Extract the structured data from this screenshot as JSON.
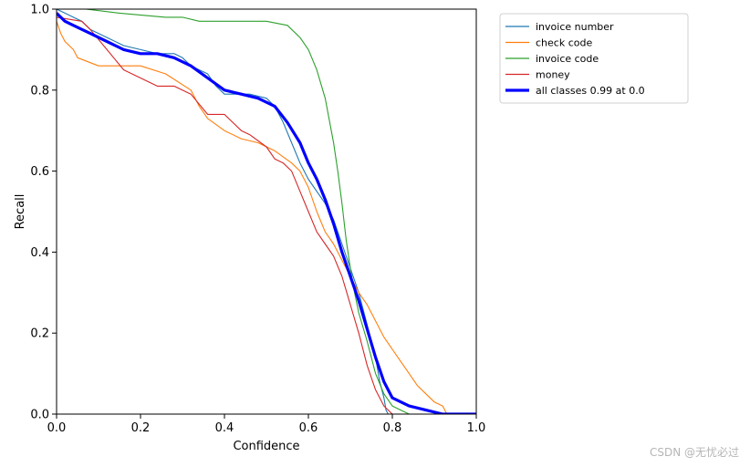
{
  "chart_data": {
    "type": "line",
    "title": "",
    "xlabel": "Confidence",
    "ylabel": "Recall",
    "xlim": [
      0,
      1
    ],
    "ylim": [
      0,
      1
    ],
    "xticks": [
      "0.0",
      "0.2",
      "0.4",
      "0.6",
      "0.8",
      "1.0"
    ],
    "yticks": [
      "0.0",
      "0.2",
      "0.4",
      "0.6",
      "0.8",
      "1.0"
    ],
    "grid": false,
    "legend_position": "outside-top-right",
    "series": [
      {
        "name": "invoice number",
        "color": "#1f77b4",
        "x": [
          0.0,
          0.02,
          0.04,
          0.06,
          0.08,
          0.12,
          0.16,
          0.2,
          0.24,
          0.28,
          0.3,
          0.32,
          0.36,
          0.38,
          0.4,
          0.42,
          0.44,
          0.46,
          0.5,
          0.52,
          0.54,
          0.56,
          0.58,
          0.6,
          0.62,
          0.64,
          0.66,
          0.68,
          0.7,
          0.72,
          0.74,
          0.76,
          0.77,
          0.78,
          0.785,
          0.79
        ],
        "y": [
          1.0,
          0.99,
          0.98,
          0.97,
          0.95,
          0.93,
          0.91,
          0.9,
          0.89,
          0.89,
          0.88,
          0.86,
          0.84,
          0.81,
          0.79,
          0.79,
          0.79,
          0.79,
          0.78,
          0.76,
          0.72,
          0.67,
          0.62,
          0.58,
          0.55,
          0.52,
          0.48,
          0.42,
          0.36,
          0.3,
          0.22,
          0.14,
          0.08,
          0.04,
          0.01,
          0.0
        ]
      },
      {
        "name": "check code",
        "color": "#ff7f0e",
        "x": [
          0.0,
          0.01,
          0.02,
          0.04,
          0.05,
          0.1,
          0.2,
          0.26,
          0.32,
          0.34,
          0.36,
          0.4,
          0.44,
          0.48,
          0.52,
          0.56,
          0.58,
          0.6,
          0.62,
          0.64,
          0.66,
          0.68,
          0.7,
          0.72,
          0.74,
          0.76,
          0.78,
          0.8,
          0.82,
          0.84,
          0.86,
          0.88,
          0.9,
          0.92,
          0.93,
          1.0
        ],
        "y": [
          0.97,
          0.94,
          0.92,
          0.9,
          0.88,
          0.86,
          0.86,
          0.84,
          0.8,
          0.76,
          0.73,
          0.7,
          0.68,
          0.67,
          0.65,
          0.62,
          0.6,
          0.56,
          0.5,
          0.45,
          0.42,
          0.38,
          0.34,
          0.3,
          0.27,
          0.23,
          0.19,
          0.16,
          0.13,
          0.1,
          0.07,
          0.05,
          0.03,
          0.02,
          0.0,
          0.0
        ]
      },
      {
        "name": "invoice code",
        "color": "#2ca02c",
        "x": [
          0.0,
          0.07,
          0.15,
          0.26,
          0.3,
          0.34,
          0.4,
          0.5,
          0.55,
          0.58,
          0.6,
          0.62,
          0.64,
          0.66,
          0.67,
          0.68,
          0.69,
          0.7,
          0.71,
          0.72,
          0.74,
          0.76,
          0.78,
          0.8,
          0.82,
          0.84,
          0.85
        ],
        "y": [
          1.0,
          1.0,
          0.99,
          0.98,
          0.98,
          0.97,
          0.97,
          0.97,
          0.96,
          0.93,
          0.9,
          0.85,
          0.78,
          0.67,
          0.6,
          0.52,
          0.43,
          0.36,
          0.3,
          0.25,
          0.18,
          0.1,
          0.05,
          0.02,
          0.01,
          0.0,
          0.0
        ]
      },
      {
        "name": "money",
        "color": "#d62728",
        "x": [
          0.0,
          0.06,
          0.08,
          0.12,
          0.16,
          0.2,
          0.24,
          0.28,
          0.32,
          0.36,
          0.4,
          0.44,
          0.46,
          0.5,
          0.52,
          0.54,
          0.56,
          0.58,
          0.6,
          0.62,
          0.64,
          0.66,
          0.68,
          0.7,
          0.72,
          0.74,
          0.76,
          0.78,
          0.8
        ],
        "y": [
          0.98,
          0.97,
          0.95,
          0.9,
          0.85,
          0.83,
          0.81,
          0.81,
          0.79,
          0.74,
          0.74,
          0.7,
          0.69,
          0.66,
          0.63,
          0.62,
          0.6,
          0.55,
          0.5,
          0.45,
          0.42,
          0.39,
          0.34,
          0.27,
          0.2,
          0.12,
          0.06,
          0.02,
          0.0
        ]
      },
      {
        "name": "all classes 0.99 at 0.0",
        "color": "#0000ff",
        "thick": true,
        "x": [
          0.0,
          0.01,
          0.02,
          0.04,
          0.06,
          0.08,
          0.12,
          0.16,
          0.2,
          0.24,
          0.28,
          0.32,
          0.36,
          0.4,
          0.44,
          0.48,
          0.52,
          0.55,
          0.58,
          0.6,
          0.62,
          0.64,
          0.66,
          0.68,
          0.7,
          0.72,
          0.74,
          0.76,
          0.78,
          0.8,
          0.84,
          0.88,
          0.92,
          1.0
        ],
        "y": [
          0.99,
          0.98,
          0.97,
          0.96,
          0.95,
          0.94,
          0.92,
          0.9,
          0.89,
          0.89,
          0.88,
          0.86,
          0.83,
          0.8,
          0.79,
          0.78,
          0.76,
          0.72,
          0.67,
          0.62,
          0.58,
          0.53,
          0.47,
          0.4,
          0.34,
          0.28,
          0.21,
          0.14,
          0.08,
          0.04,
          0.02,
          0.01,
          0.0,
          0.0
        ]
      }
    ]
  },
  "watermark": "CSDN @无忧必过"
}
